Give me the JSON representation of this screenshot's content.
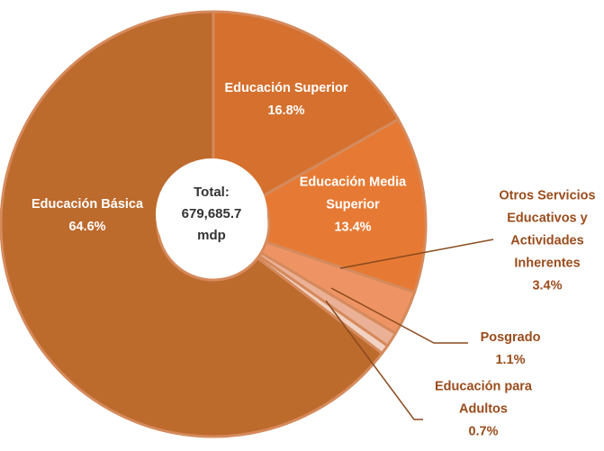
{
  "chart_data": {
    "type": "pie",
    "hole": true,
    "center_text": [
      "Total:",
      "679,685.7",
      "mdp"
    ],
    "categories": [
      "Educación Superior",
      "Educación Media Superior",
      "Otros Servicios Educativos y Actividades Inherentes",
      "Posgrado",
      "Educación para Adultos",
      "Educación Básica"
    ],
    "values": [
      16.8,
      13.4,
      3.4,
      1.1,
      0.7,
      64.6
    ],
    "value_labels": [
      "16.8%",
      "13.4%",
      "3.4%",
      "1.1%",
      "0.7%",
      "64.6%"
    ],
    "colors": [
      "#d5702e",
      "#e67a34",
      "#ee9464",
      "#ebb196",
      "#f2d2c2",
      "#bd6a2d"
    ]
  }
}
